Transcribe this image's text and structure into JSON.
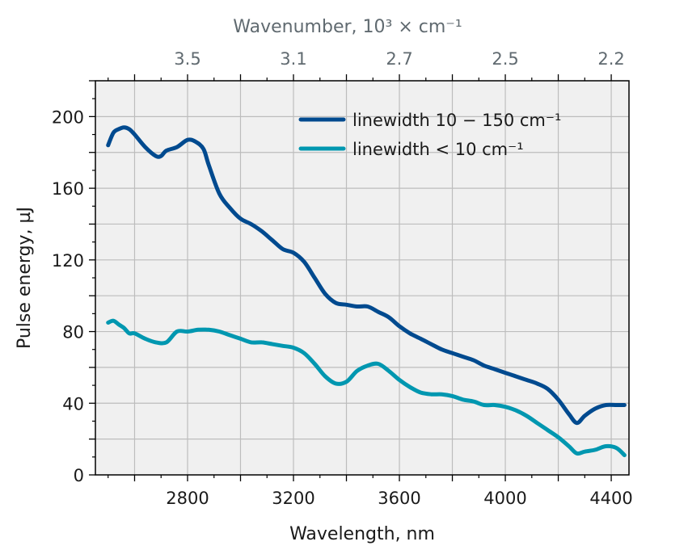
{
  "chart_data": {
    "type": "line",
    "title": "",
    "xlabel": "Wavelength, nm",
    "ylabel": "Pulse energy, µJ",
    "top_xlabel": "Wavenumber, 10³ × cm⁻¹",
    "xlim": [
      2452,
      4467
    ],
    "ylim": [
      0,
      220
    ],
    "grid": true,
    "legend_position": "top-right",
    "x_ticks": [
      2800,
      3200,
      3600,
      4000,
      4400
    ],
    "x_tick_labels": [
      "2800",
      "3200",
      "3600",
      "4000",
      "4400"
    ],
    "x_major_step": 200,
    "y_ticks": [
      0,
      40,
      80,
      120,
      160,
      200
    ],
    "y_tick_labels": [
      "0",
      "40",
      "80",
      "120",
      "160",
      "200"
    ],
    "y_major_step": 20,
    "top_ticks": [
      {
        "label": "3.5",
        "wavelength": 2800
      },
      {
        "label": "3.1",
        "wavelength": 3200
      },
      {
        "label": "2.7",
        "wavelength": 3600
      },
      {
        "label": "2.5",
        "wavelength": 4000
      },
      {
        "label": "2.2",
        "wavelength": 4400
      }
    ],
    "series": [
      {
        "name": "linewidth 10 − 150 cm⁻¹",
        "color": "#004a8f",
        "x": [
          2500,
          2520,
          2540,
          2560,
          2580,
          2600,
          2640,
          2680,
          2700,
          2720,
          2760,
          2800,
          2830,
          2860,
          2880,
          2920,
          2960,
          3000,
          3040,
          3080,
          3120,
          3160,
          3200,
          3240,
          3280,
          3320,
          3360,
          3400,
          3440,
          3480,
          3520,
          3560,
          3600,
          3640,
          3680,
          3720,
          3760,
          3800,
          3840,
          3880,
          3920,
          3960,
          4000,
          4040,
          4080,
          4120,
          4160,
          4200,
          4240,
          4270,
          4300,
          4340,
          4380,
          4420,
          4450
        ],
        "y": [
          184,
          191,
          193,
          194,
          193,
          190,
          183,
          178,
          178,
          181,
          183,
          187,
          186,
          182,
          173,
          157,
          149,
          143,
          140,
          136,
          131,
          126,
          124,
          119,
          110,
          101,
          96,
          95,
          94,
          94,
          91,
          88,
          83,
          79,
          76,
          73,
          70,
          68,
          66,
          64,
          61,
          59,
          57,
          55,
          53,
          51,
          48,
          42,
          34,
          29,
          33,
          37,
          39,
          39,
          39
        ],
        "values_note": "approximate, read from gridlines"
      },
      {
        "name": "linewidth < 10 cm⁻¹",
        "color": "#0097b0",
        "x": [
          2500,
          2520,
          2540,
          2560,
          2580,
          2600,
          2640,
          2680,
          2720,
          2760,
          2800,
          2840,
          2880,
          2920,
          2960,
          3000,
          3040,
          3080,
          3120,
          3160,
          3200,
          3240,
          3280,
          3320,
          3360,
          3400,
          3440,
          3480,
          3520,
          3560,
          3600,
          3640,
          3680,
          3720,
          3760,
          3800,
          3840,
          3880,
          3920,
          3960,
          4000,
          4040,
          4080,
          4120,
          4160,
          4200,
          4240,
          4270,
          4300,
          4340,
          4380,
          4420,
          4450
        ],
        "y": [
          85,
          86,
          84,
          82,
          79,
          79,
          76,
          74,
          74,
          80,
          80,
          81,
          81,
          80,
          78,
          76,
          74,
          74,
          73,
          72,
          71,
          68,
          62,
          55,
          51,
          52,
          58,
          61,
          62,
          58,
          53,
          49,
          46,
          45,
          45,
          44,
          42,
          41,
          39,
          39,
          38,
          36,
          33,
          29,
          25,
          21,
          16,
          12,
          13,
          14,
          16,
          15,
          11
        ],
        "values_note": "approximate, read from gridlines"
      }
    ]
  }
}
